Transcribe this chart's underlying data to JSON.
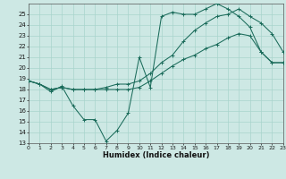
{
  "xlabel": "Humidex (Indice chaleur)",
  "background_color": "#cde8e4",
  "grid_color": "#a8d4cc",
  "line_color": "#1a6b5a",
  "xlim": [
    0,
    23
  ],
  "ylim": [
    13,
    26
  ],
  "xticks": [
    0,
    1,
    2,
    3,
    4,
    5,
    6,
    7,
    8,
    9,
    10,
    11,
    12,
    13,
    14,
    15,
    16,
    17,
    18,
    19,
    20,
    21,
    22,
    23
  ],
  "yticks": [
    13,
    14,
    15,
    16,
    17,
    18,
    19,
    20,
    21,
    22,
    23,
    24,
    25
  ],
  "line1_x": [
    0,
    1,
    2,
    3,
    4,
    5,
    6,
    7,
    8,
    9,
    10,
    11,
    12,
    13,
    14,
    15,
    16,
    17,
    18,
    19,
    20,
    21,
    22,
    23
  ],
  "line1_y": [
    18.8,
    18.5,
    17.8,
    18.3,
    16.5,
    15.2,
    15.2,
    13.2,
    14.2,
    15.8,
    21.0,
    18.2,
    24.8,
    25.2,
    25.0,
    25.0,
    25.5,
    26.0,
    25.5,
    24.8,
    23.8,
    21.5,
    20.5,
    20.5
  ],
  "line2_x": [
    0,
    1,
    2,
    3,
    4,
    5,
    6,
    7,
    8,
    9,
    10,
    11,
    12,
    13,
    14,
    15,
    16,
    17,
    18,
    19,
    20,
    21,
    22,
    23
  ],
  "line2_y": [
    18.8,
    18.5,
    18.0,
    18.2,
    18.0,
    18.0,
    18.0,
    18.0,
    18.0,
    18.0,
    18.2,
    18.8,
    19.5,
    20.2,
    20.8,
    21.2,
    21.8,
    22.2,
    22.8,
    23.2,
    23.0,
    21.5,
    20.5,
    20.5
  ],
  "line3_x": [
    0,
    1,
    2,
    3,
    4,
    5,
    6,
    7,
    8,
    9,
    10,
    11,
    12,
    13,
    14,
    15,
    16,
    17,
    18,
    19,
    20,
    21,
    22,
    23
  ],
  "line3_y": [
    18.8,
    18.5,
    18.0,
    18.2,
    18.0,
    18.0,
    18.0,
    18.2,
    18.5,
    18.5,
    18.8,
    19.5,
    20.5,
    21.2,
    22.5,
    23.5,
    24.2,
    24.8,
    25.0,
    25.5,
    24.8,
    24.2,
    23.2,
    21.5
  ]
}
